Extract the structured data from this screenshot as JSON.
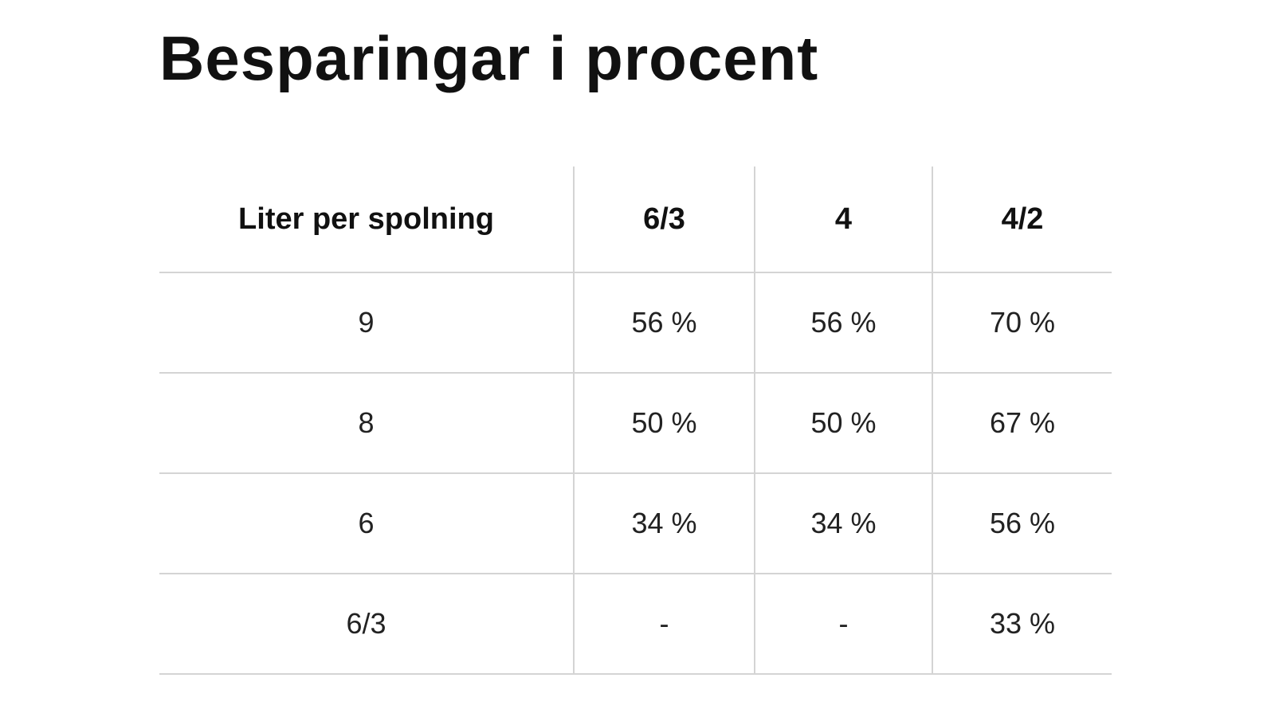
{
  "title": "Besparingar i procent",
  "table": {
    "headers": [
      "Liter per spolning",
      "6/3",
      "4",
      "4/2"
    ],
    "rows": [
      [
        "9",
        "56 %",
        "56 %",
        "70 %"
      ],
      [
        "8",
        "50 %",
        "50 %",
        "67 %"
      ],
      [
        "6",
        "34 %",
        "34 %",
        "56 %"
      ],
      [
        "6/3",
        "-",
        "-",
        "33 %"
      ]
    ]
  }
}
